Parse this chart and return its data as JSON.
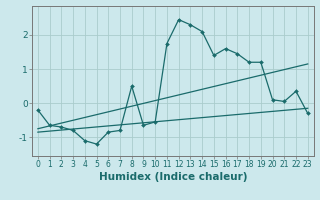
{
  "xlabel": "Humidex (Indice chaleur)",
  "x": [
    0,
    1,
    2,
    3,
    4,
    5,
    6,
    7,
    8,
    9,
    10,
    11,
    12,
    13,
    14,
    15,
    16,
    17,
    18,
    19,
    20,
    21,
    22,
    23
  ],
  "line1": [
    -0.2,
    -0.65,
    -0.7,
    -0.8,
    -1.1,
    -1.2,
    -0.85,
    -0.8,
    0.5,
    -0.65,
    -0.55,
    1.75,
    2.45,
    2.3,
    2.1,
    1.4,
    1.6,
    1.45,
    1.2,
    1.2,
    0.1,
    0.05,
    0.35,
    -0.3
  ],
  "line2_x": [
    0,
    23
  ],
  "line2_y": [
    -0.75,
    1.15
  ],
  "line3_x": [
    0,
    23
  ],
  "line3_y": [
    -0.85,
    -0.15
  ],
  "bg_color": "#cce8ec",
  "grid_color": "#aacccc",
  "line_color": "#1a6b6b",
  "ylim": [
    -1.55,
    2.85
  ],
  "yticks": [
    -1,
    0,
    1,
    2
  ],
  "xticks": [
    0,
    1,
    2,
    3,
    4,
    5,
    6,
    7,
    8,
    9,
    10,
    11,
    12,
    13,
    14,
    15,
    16,
    17,
    18,
    19,
    20,
    21,
    22,
    23
  ],
  "tick_fontsize": 5.5,
  "ylabel_fontsize": 6.5,
  "xlabel_fontsize": 7.5
}
